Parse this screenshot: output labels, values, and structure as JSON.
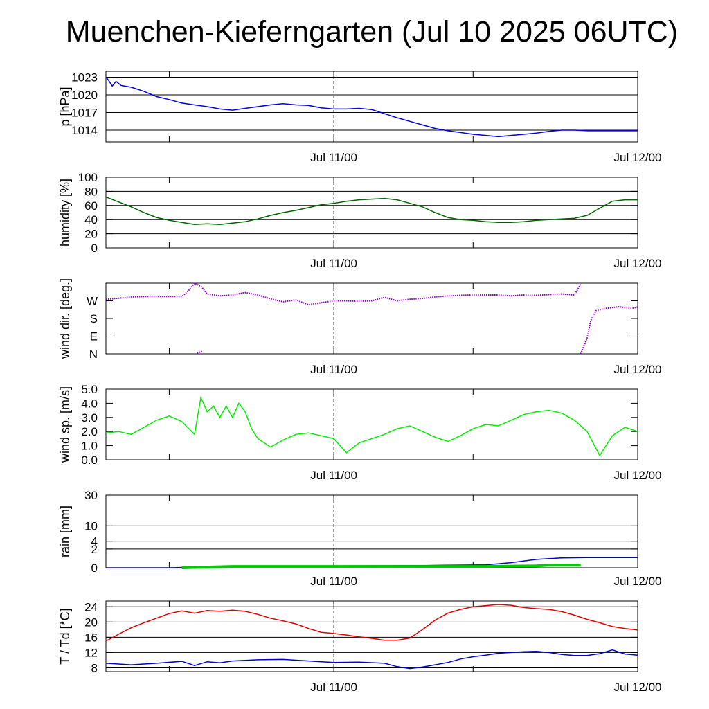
{
  "title": "Muenchen-Kieferngarten (Jul 10 2025 06UTC)",
  "x_tick_labels": [
    "Jul 11/00",
    "Jul 12/00"
  ],
  "colors": {
    "pressure": "#0000dd",
    "humidity": "#006400",
    "wind_dir": "#9400d3",
    "wind_speed": "#00ee00",
    "rain_total": "#0000cc",
    "rain_rate": "#00cc00",
    "temperature": "#dd0000",
    "dewpoint": "#0000cc"
  },
  "chart_data": [
    {
      "type": "line",
      "ylabel": "p [hPa]",
      "x_unit": "hours since Jul 10 06UTC",
      "xlim": [
        0,
        42
      ],
      "ylim": [
        1012,
        1024
      ],
      "yticks": [
        {
          "v": 1014,
          "label": "1014"
        },
        {
          "v": 1017,
          "label": "1017"
        },
        {
          "v": 1020,
          "label": "1020"
        },
        {
          "v": 1023,
          "label": "1023"
        }
      ],
      "grid": true,
      "series": [
        {
          "color_key": "pressure",
          "x": [
            0,
            0.2,
            0.5,
            0.8,
            1.2,
            2,
            3,
            4,
            5,
            6,
            7,
            8,
            9,
            10,
            11,
            12,
            13,
            14,
            15,
            16,
            17,
            18,
            19,
            20,
            21,
            22,
            23,
            24,
            25,
            26,
            27,
            28,
            29,
            30,
            31,
            32,
            33,
            34,
            35,
            36,
            37,
            38,
            39,
            40,
            41,
            42
          ],
          "y": [
            1023,
            1022.5,
            1021.5,
            1022.3,
            1021.6,
            1021.3,
            1020.6,
            1019.7,
            1019.2,
            1018.6,
            1018.3,
            1018.0,
            1017.6,
            1017.4,
            1017.7,
            1018.0,
            1018.3,
            1018.5,
            1018.3,
            1018.2,
            1017.8,
            1017.6,
            1017.6,
            1017.7,
            1017.5,
            1016.8,
            1016.1,
            1015.5,
            1014.9,
            1014.3,
            1013.9,
            1013.6,
            1013.3,
            1013.1,
            1012.9,
            1013.1,
            1013.3,
            1013.5,
            1013.8,
            1014.0,
            1014.0,
            1013.9,
            1013.9,
            1013.9,
            1013.9,
            1013.9
          ]
        }
      ]
    },
    {
      "type": "line",
      "ylabel": "humidity [%]",
      "xlim": [
        0,
        42
      ],
      "ylim": [
        0,
        100
      ],
      "yticks": [
        {
          "v": 0,
          "label": "0"
        },
        {
          "v": 20,
          "label": "20"
        },
        {
          "v": 40,
          "label": "40"
        },
        {
          "v": 60,
          "label": "60"
        },
        {
          "v": 80,
          "label": "80"
        },
        {
          "v": 100,
          "label": "100"
        }
      ],
      "grid": true,
      "series": [
        {
          "color_key": "humidity",
          "x": [
            0,
            1,
            2,
            3,
            4,
            5,
            6,
            7,
            8,
            9,
            10,
            11,
            12,
            13,
            14,
            15,
            16,
            17,
            18,
            19,
            20,
            21,
            22,
            23,
            24,
            25,
            26,
            27,
            28,
            29,
            30,
            31,
            32,
            33,
            34,
            35,
            36,
            37,
            38,
            39,
            40,
            41,
            42
          ],
          "y": [
            72,
            65,
            58,
            50,
            43,
            39,
            36,
            33,
            34,
            33,
            35,
            37,
            41,
            46,
            50,
            53,
            57,
            61,
            63,
            66,
            68,
            69,
            70,
            68,
            63,
            58,
            50,
            43,
            40,
            39,
            37,
            36,
            36,
            37,
            39,
            40,
            41,
            42,
            46,
            56,
            66,
            68,
            68
          ]
        }
      ]
    },
    {
      "type": "scatter",
      "ylabel": "wind dir. [deg.]",
      "xlim": [
        0,
        42
      ],
      "ylim": [
        0,
        360
      ],
      "yticks": [
        {
          "v": 0,
          "label": "N"
        },
        {
          "v": 90,
          "label": "E"
        },
        {
          "v": 180,
          "label": "S"
        },
        {
          "v": 270,
          "label": "W"
        }
      ],
      "grid": false,
      "series": [
        {
          "color_key": "wind_dir",
          "x": [
            0,
            1,
            2,
            3,
            4,
            5,
            6,
            6.5,
            7,
            7.5,
            8,
            9,
            10,
            11,
            12,
            13,
            14,
            15,
            16,
            17,
            18,
            19,
            20,
            21,
            22,
            23,
            24,
            25,
            26,
            27,
            28,
            29,
            30,
            31,
            32,
            33,
            34,
            35,
            36,
            37,
            37.5
          ],
          "y": [
            278,
            283,
            290,
            292,
            292,
            292,
            292,
            320,
            360,
            345,
            305,
            295,
            300,
            312,
            300,
            280,
            265,
            275,
            250,
            260,
            270,
            270,
            268,
            270,
            288,
            270,
            278,
            282,
            290,
            295,
            298,
            300,
            300,
            300,
            295,
            300,
            298,
            302,
            305,
            300,
            355
          ]
        },
        {
          "color_key": "wind_dir",
          "x": [
            7.2,
            7.6
          ],
          "y": [
            5,
            12
          ]
        },
        {
          "color_key": "wind_dir",
          "x": [
            37.5,
            38,
            38.3,
            38.7,
            39.5,
            40.5,
            41.5,
            42
          ],
          "y": [
            0,
            80,
            170,
            220,
            232,
            240,
            232,
            238
          ]
        }
      ]
    },
    {
      "type": "line",
      "ylabel": "wind sp. [m/s]",
      "xlim": [
        0,
        42
      ],
      "ylim": [
        0,
        5
      ],
      "yticks": [
        {
          "v": 0,
          "label": "0.0"
        },
        {
          "v": 1,
          "label": "1.0"
        },
        {
          "v": 2,
          "label": "2.0"
        },
        {
          "v": 3,
          "label": "3.0"
        },
        {
          "v": 4,
          "label": "4.0"
        },
        {
          "v": 5,
          "label": "5.0"
        }
      ],
      "grid": false,
      "series": [
        {
          "color_key": "wind_speed",
          "x": [
            0,
            1,
            2,
            3,
            4,
            5,
            6,
            7,
            7.5,
            8,
            8.5,
            9,
            9.5,
            10,
            10.5,
            11,
            11.5,
            12,
            13,
            14,
            15,
            16,
            17,
            18,
            19,
            20,
            21,
            22,
            23,
            24,
            25,
            26,
            27,
            28,
            29,
            30,
            31,
            32,
            33,
            34,
            35,
            36,
            37,
            38,
            39,
            40,
            41,
            42
          ],
          "y": [
            1.9,
            2.0,
            1.8,
            2.3,
            2.8,
            3.1,
            2.7,
            1.8,
            4.4,
            3.4,
            3.8,
            3.0,
            3.8,
            3.0,
            4.0,
            3.4,
            2.2,
            1.5,
            0.9,
            1.4,
            1.8,
            1.9,
            1.7,
            1.5,
            0.5,
            1.2,
            1.5,
            1.8,
            2.2,
            2.4,
            2.0,
            1.6,
            1.3,
            1.7,
            2.2,
            2.5,
            2.4,
            2.8,
            3.2,
            3.4,
            3.5,
            3.3,
            2.8,
            2.0,
            0.3,
            1.7,
            2.3,
            2.0
          ]
        }
      ]
    },
    {
      "type": "line",
      "ylabel": "rain [mm]",
      "xlim": [
        0,
        42
      ],
      "ylim": [
        0,
        30
      ],
      "scale": "sqrt",
      "yticks": [
        {
          "v": 0,
          "label": "0"
        },
        {
          "v": 2,
          "label": "2"
        },
        {
          "v": 4,
          "label": "4"
        },
        {
          "v": 10,
          "label": "10"
        },
        {
          "v": 30,
          "label": "30"
        }
      ],
      "grid": true,
      "series": [
        {
          "color_key": "rain_total",
          "x": [
            0,
            5,
            10,
            18,
            25,
            30,
            32,
            34,
            36,
            38,
            42
          ],
          "y": [
            0,
            0,
            0.01,
            0.02,
            0.03,
            0.05,
            0.15,
            0.4,
            0.55,
            0.6,
            0.6
          ]
        },
        {
          "color_key": "rain_rate",
          "x": [
            6,
            10,
            18,
            30,
            34,
            35,
            37.5
          ],
          "y": [
            0,
            0.01,
            0.01,
            0.01,
            0.02,
            0.04,
            0.04
          ]
        }
      ]
    },
    {
      "type": "line",
      "ylabel": "T / Td [*C]",
      "xlim": [
        0,
        42
      ],
      "ylim": [
        7,
        25.5
      ],
      "yticks": [
        {
          "v": 8,
          "label": "8"
        },
        {
          "v": 12,
          "label": "12"
        },
        {
          "v": 16,
          "label": "16"
        },
        {
          "v": 20,
          "label": "20"
        },
        {
          "v": 24,
          "label": "24"
        }
      ],
      "grid": true,
      "series": [
        {
          "color_key": "temperature",
          "x": [
            0,
            1,
            2,
            3,
            4,
            5,
            6,
            7,
            8,
            9,
            10,
            11,
            12,
            13,
            14,
            15,
            16,
            17,
            18,
            19,
            20,
            21,
            22,
            23,
            24,
            25,
            26,
            27,
            28,
            29,
            30,
            31,
            32,
            33,
            34,
            35,
            36,
            37,
            38,
            39,
            40,
            41,
            42
          ],
          "y": [
            15,
            16.8,
            18.5,
            19.8,
            21,
            22.2,
            22.9,
            22.3,
            23,
            22.8,
            23.1,
            22.8,
            22,
            21,
            20.3,
            19.5,
            18.3,
            17.3,
            17,
            16.6,
            16.1,
            15.7,
            15.2,
            15.2,
            15.8,
            18,
            20.5,
            22.3,
            23.3,
            24,
            24.3,
            24.6,
            24.4,
            23.8,
            23.5,
            23.3,
            22.7,
            21.8,
            20.7,
            19.8,
            18.8,
            18.3,
            17.9
          ]
        },
        {
          "color_key": "dewpoint",
          "x": [
            0,
            2,
            4,
            6,
            7,
            8,
            9,
            10,
            12,
            14,
            16,
            18,
            20,
            22,
            23,
            24,
            25,
            26,
            27,
            28,
            29,
            30,
            31,
            32,
            33,
            34,
            35,
            36,
            37,
            38,
            39,
            40,
            41,
            42
          ],
          "y": [
            9.2,
            8.8,
            9.2,
            9.7,
            8.6,
            9.6,
            9.3,
            9.8,
            10.1,
            10.2,
            9.8,
            9.4,
            9.5,
            9.2,
            8.3,
            7.8,
            8.2,
            8.8,
            9.4,
            10.3,
            10.9,
            11.3,
            11.8,
            12.0,
            12.2,
            12.3,
            12.0,
            11.5,
            11.2,
            11.2,
            11.7,
            12.7,
            11.6,
            11.3
          ]
        }
      ]
    }
  ]
}
